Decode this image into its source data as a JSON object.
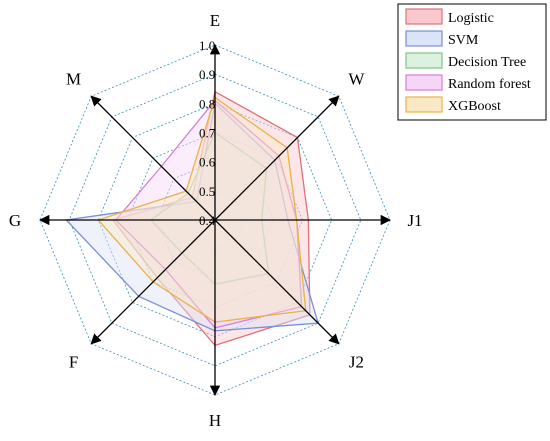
{
  "chart_data": {
    "type": "radar",
    "axes": [
      "E",
      "W",
      "J1",
      "J2",
      "H",
      "F",
      "G",
      "M"
    ],
    "range": [
      0.4,
      1.0
    ],
    "ticks": [
      "0.4",
      "0.5",
      "0.6",
      "0.7",
      "0.8",
      "0.9",
      "1.0"
    ],
    "grid": true,
    "legend_position": "top-right",
    "series": [
      {
        "name": "Logistic",
        "values": [
          0.84,
          0.8,
          0.72,
          0.86,
          0.83,
          0.68,
          0.75,
          0.51
        ],
        "color": "#e0707a",
        "fill": "#f8c8cc"
      },
      {
        "name": "SVM",
        "values": [
          0.8,
          0.69,
          0.65,
          0.9,
          0.78,
          0.77,
          0.91,
          0.49
        ],
        "color": "#7b8fd6",
        "fill": "#dbe3f7"
      },
      {
        "name": "Decision Tree",
        "values": [
          0.7,
          0.65,
          0.56,
          0.66,
          0.62,
          0.56,
          0.62,
          0.53
        ],
        "color": "#7ec48a",
        "fill": "#ddf1df"
      },
      {
        "name": "Random forest",
        "values": [
          0.81,
          0.71,
          0.68,
          0.82,
          0.77,
          0.64,
          0.74,
          0.66
        ],
        "color": "#d67fd6",
        "fill": "#f6d6f6"
      },
      {
        "name": "XGBoost",
        "values": [
          0.82,
          0.75,
          0.68,
          0.84,
          0.75,
          0.7,
          0.8,
          0.54
        ],
        "color": "#e8b24a",
        "fill": "#fbe9c6"
      }
    ]
  }
}
